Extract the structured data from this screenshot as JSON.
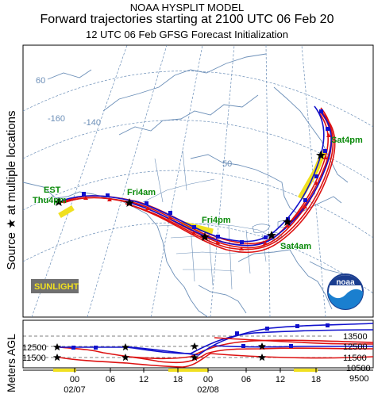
{
  "title": {
    "line1": "NOAA HYSPLIT MODEL",
    "line2": "Forward trajectories starting at 2100 UTC 06 Feb 20",
    "line3": "12 UTC 06 Feb    GFSG  Forecast Initialization"
  },
  "side_labels": {
    "map": "Source ★ at multiple locations",
    "profile": "Meters AGL"
  },
  "map": {
    "time_labels": [
      "EST",
      "Thu4pm",
      "Fri4am",
      "Fri4pm",
      "Sat4am",
      "Sat4pm"
    ],
    "lat_labels": [
      "60",
      "50"
    ],
    "lon_labels": [
      "-160",
      "-140"
    ],
    "sunlight_label": "SUNLIGHT",
    "logo_text": "noaa"
  },
  "profile": {
    "y_labels": [
      "13500",
      "12500",
      "11500",
      "10500",
      "9500"
    ],
    "left_labels": [
      "12500",
      "11500"
    ],
    "x_tick_labels": [
      "00",
      "06",
      "12",
      "18",
      "00",
      "06",
      "12",
      "18"
    ],
    "date_labels": [
      "02/07",
      "02/08"
    ]
  },
  "colors": {
    "red": "#dd1111",
    "blue": "#1111cc",
    "sunlight": "#f0e020",
    "green": "#0a8a0a",
    "map_lines": "#6c8fb8"
  }
}
